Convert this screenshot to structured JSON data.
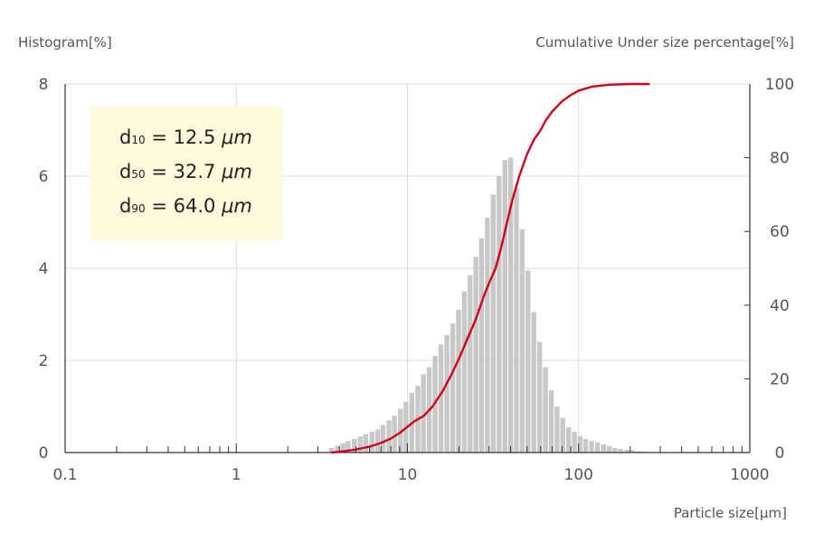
{
  "chart_data": {
    "type": "bar",
    "y_left_label": "Histogram[%]",
    "y_right_label": "Cumulative Under size percentage[%]",
    "xlabel": "Particle size[µm]",
    "x_scale": "log",
    "xlim": [
      0.1,
      1000
    ],
    "x_ticks": [
      "0.1",
      "1",
      "10",
      "100",
      "1000"
    ],
    "x_tick_values": [
      0.1,
      1,
      10,
      100,
      1000
    ],
    "ylim_left": [
      0,
      8
    ],
    "y_left_ticks": [
      0,
      2,
      4,
      6,
      8
    ],
    "ylim_right": [
      0,
      100
    ],
    "y_right_ticks": [
      0,
      20,
      40,
      60,
      80,
      100
    ],
    "grid": true,
    "series": [
      {
        "type": "bar",
        "axis": "left",
        "color": "#c8c8c8",
        "x": [
          3.6,
          3.9,
          4.2,
          4.5,
          4.9,
          5.3,
          5.7,
          6.2,
          6.7,
          7.2,
          7.8,
          8.4,
          9.1,
          9.8,
          10.6,
          11.5,
          12.4,
          13.4,
          14.5,
          15.7,
          17.0,
          18.4,
          19.9,
          21.5,
          23.2,
          25.1,
          27.1,
          29.3,
          31.7,
          34.3,
          37.1,
          40.1,
          43.3,
          46.8,
          50.6,
          54.7,
          59.2,
          64.0,
          69.2,
          74.8,
          80.8,
          87.4,
          94.5,
          102,
          110,
          119,
          129,
          140,
          151,
          163,
          176,
          191,
          206,
          223,
          241,
          261
        ],
        "values": [
          0.1,
          0.15,
          0.2,
          0.25,
          0.3,
          0.35,
          0.4,
          0.45,
          0.5,
          0.6,
          0.7,
          0.8,
          0.95,
          1.1,
          1.3,
          1.45,
          1.7,
          1.85,
          2.1,
          2.35,
          2.55,
          2.8,
          3.1,
          3.5,
          3.85,
          4.25,
          4.65,
          5.1,
          5.6,
          6.0,
          6.35,
          6.4,
          5.75,
          4.85,
          3.95,
          3.05,
          2.4,
          1.85,
          1.35,
          1.0,
          0.75,
          0.55,
          0.45,
          0.35,
          0.3,
          0.25,
          0.22,
          0.18,
          0.14,
          0.1,
          0.08,
          0.06,
          0.05,
          0.03,
          0.02,
          0.01
        ]
      },
      {
        "type": "line",
        "axis": "right",
        "color": "#d0021b",
        "x": [
          3.6,
          4,
          5,
          6,
          7,
          8,
          9,
          10,
          11,
          12.5,
          14,
          16,
          18,
          20,
          22,
          25,
          28,
          30,
          32.7,
          35,
          38,
          41,
          45,
          50,
          55,
          60,
          64,
          70,
          80,
          90,
          100,
          120,
          150,
          200,
          260
        ],
        "values": [
          0,
          0.2,
          0.8,
          1.6,
          2.6,
          3.8,
          5.3,
          7.0,
          8.5,
          10.0,
          12.5,
          16.5,
          21.0,
          25.5,
          30.0,
          36.0,
          42.5,
          46.0,
          50.0,
          55.0,
          62.0,
          68.5,
          75.0,
          81.0,
          85.0,
          87.5,
          90.0,
          92.5,
          95.3,
          97.0,
          98.2,
          99.3,
          99.8,
          100,
          100
        ]
      }
    ]
  },
  "stats": {
    "d10": {
      "label": "d",
      "sub": "10",
      "eq": "=",
      "value": "12.5",
      "unit": "μm"
    },
    "d50": {
      "label": "d",
      "sub": "50",
      "eq": "=",
      "value": "32.7",
      "unit": "μm"
    },
    "d90": {
      "label": "d",
      "sub": "90",
      "eq": "=",
      "value": "64.0",
      "unit": "μm"
    }
  }
}
